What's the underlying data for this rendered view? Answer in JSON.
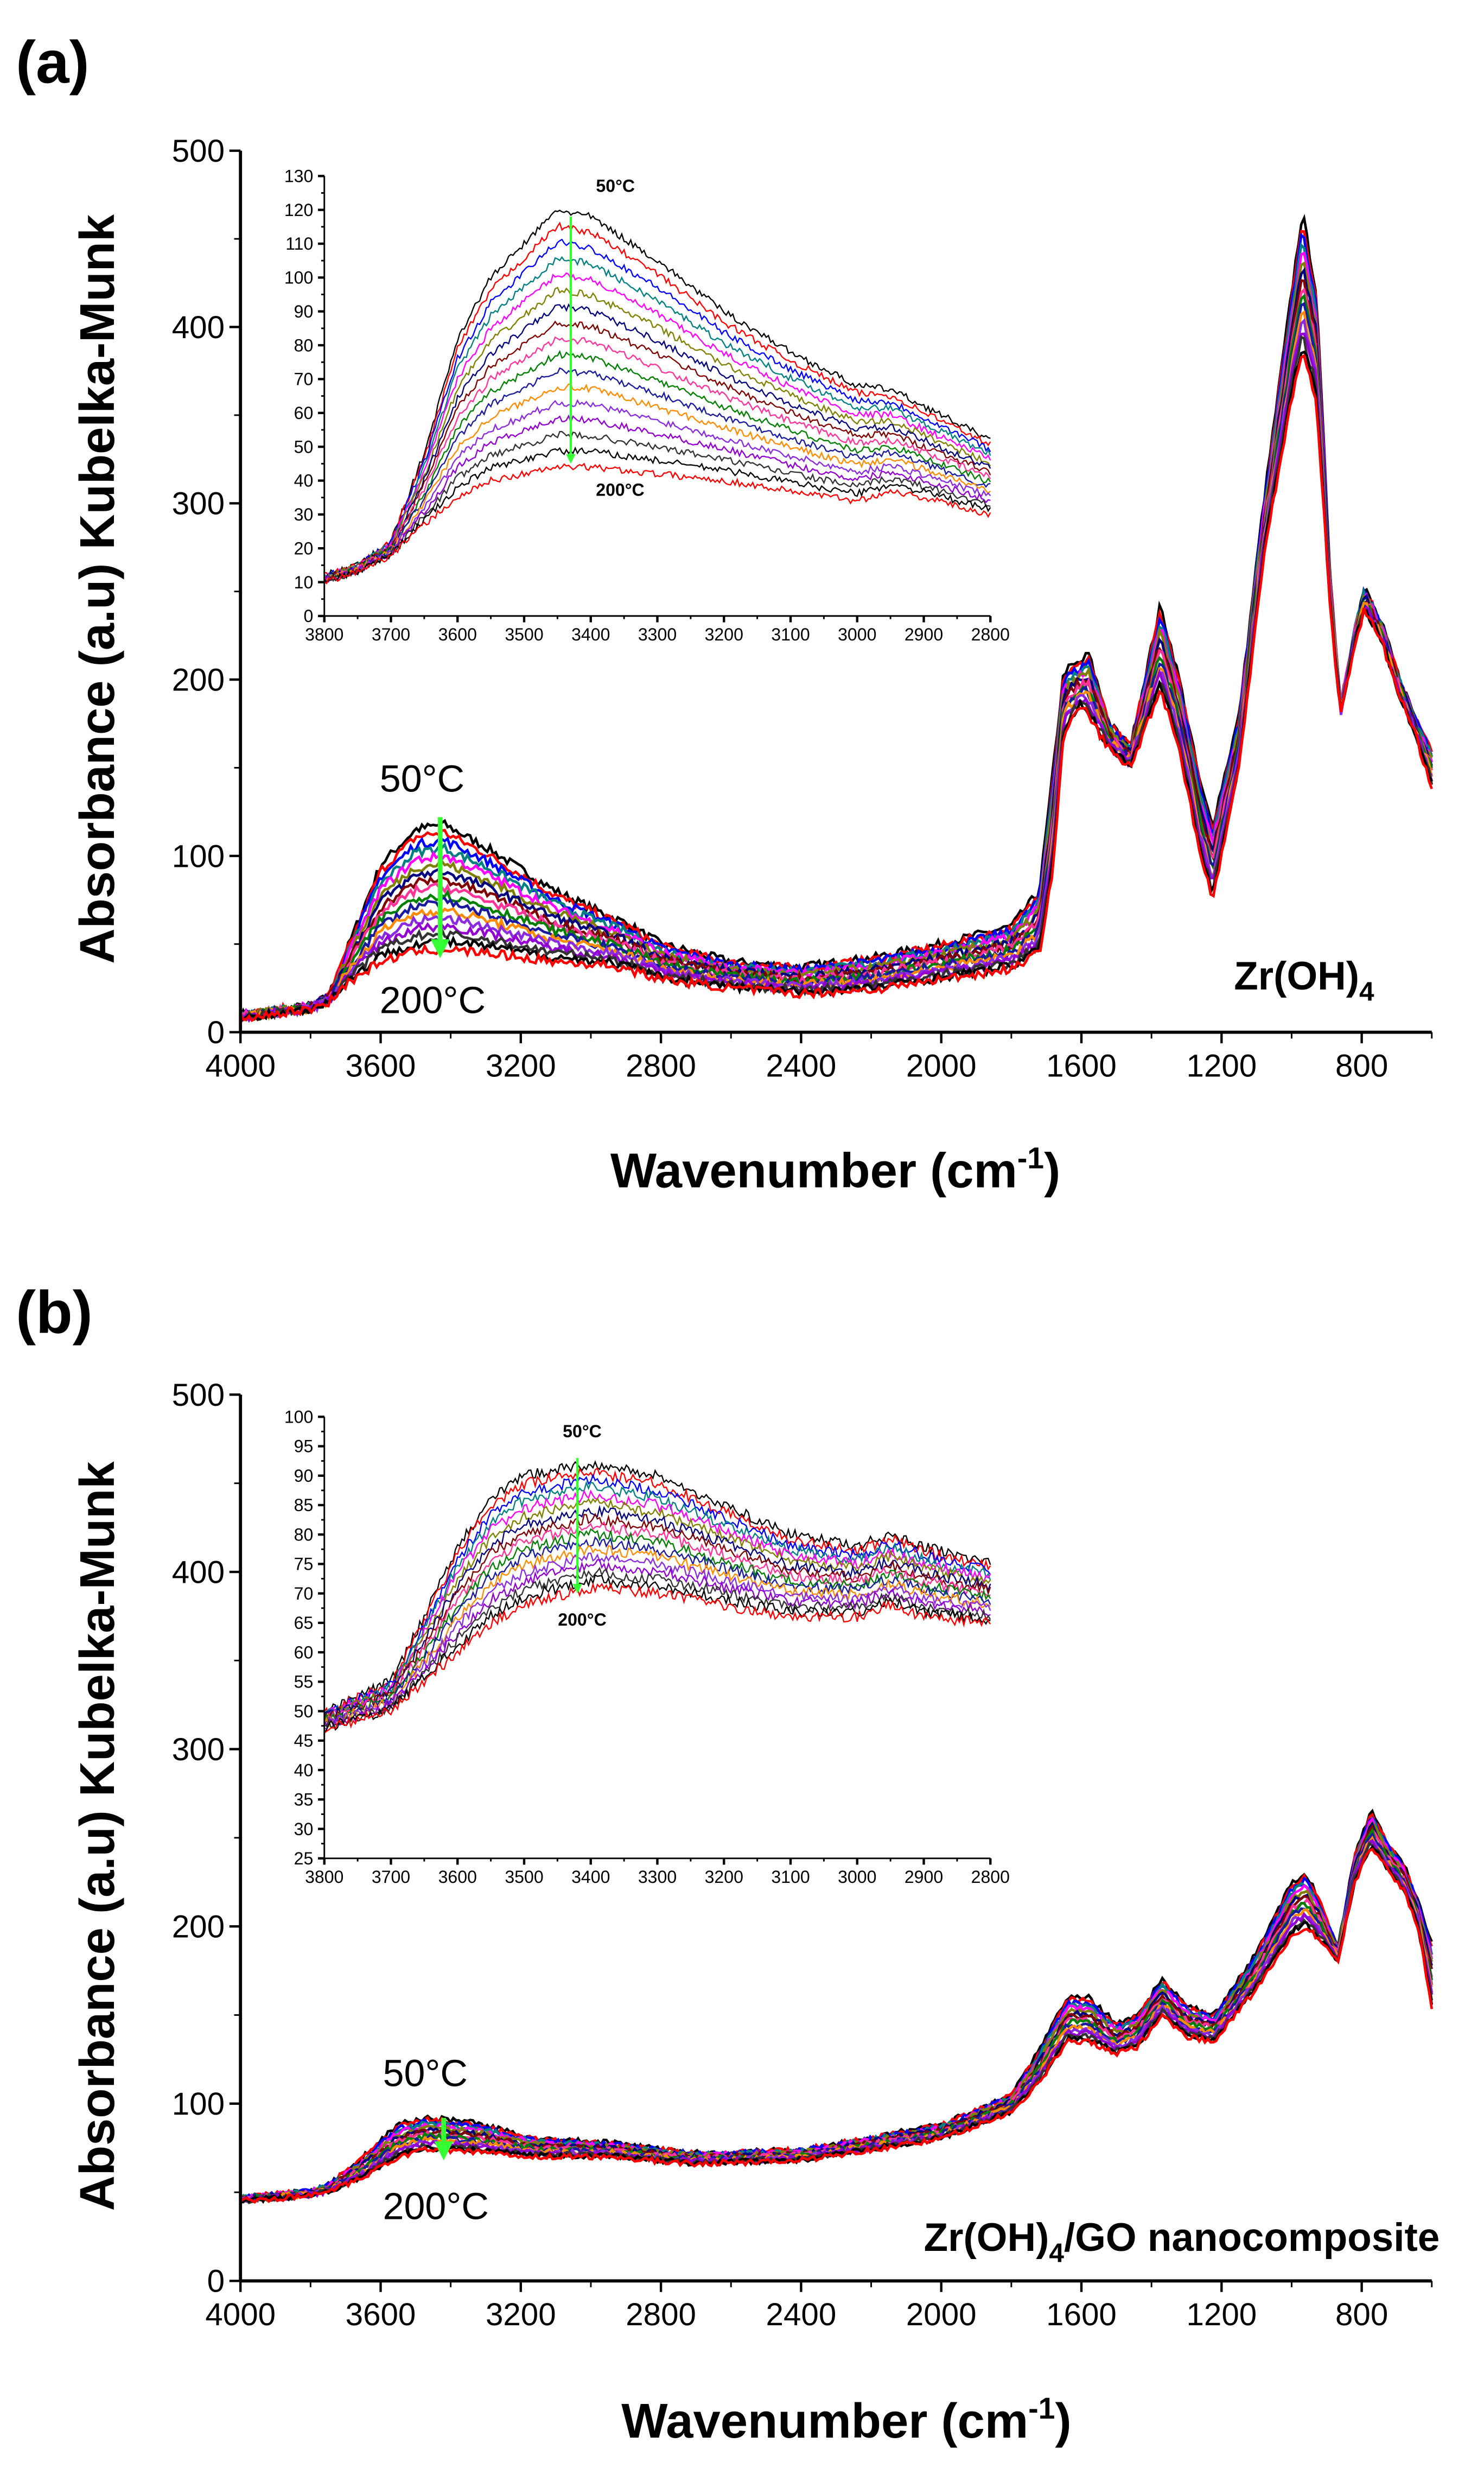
{
  "figure": {
    "panel_a_label": "(a)",
    "panel_b_label": "(b)"
  },
  "chart_data": [
    {
      "type": "line",
      "panel": "a-main",
      "title": "",
      "xlabel": "Wavenumber (cm",
      "xlabel_sup": "-1",
      "xlabel_end": ")",
      "ylabel": "Absorbance (a.u) Kubelka-Munk",
      "xlim": [
        4000,
        600
      ],
      "ylim": [
        0,
        500
      ],
      "xticks": [
        4000,
        3600,
        3200,
        2800,
        2400,
        2000,
        1600,
        1200,
        800
      ],
      "xminor": 200,
      "yticks": [
        0,
        100,
        200,
        300,
        400,
        500
      ],
      "yminor": 50,
      "grid": false,
      "n_series": 17,
      "series_colors": [
        "#000000",
        "#ff0000",
        "#0000ff",
        "#008080",
        "#ff00ff",
        "#808000",
        "#000080",
        "#800000",
        "#ff3399",
        "#008000",
        "#1a1aa0",
        "#ff8c00",
        "#8a2be2",
        "#9400d3",
        "#333333",
        "#000000",
        "#ff0000"
      ],
      "series_50C": [
        [
          4000,
          10
        ],
        [
          3800,
          15
        ],
        [
          3750,
          20
        ],
        [
          3700,
          45
        ],
        [
          3600,
          95
        ],
        [
          3500,
          115
        ],
        [
          3420,
          118
        ],
        [
          3300,
          105
        ],
        [
          3100,
          80
        ],
        [
          2950,
          66
        ],
        [
          2900,
          62
        ],
        [
          2800,
          50
        ],
        [
          2600,
          40
        ],
        [
          2400,
          37
        ],
        [
          2200,
          42
        ],
        [
          2000,
          50
        ],
        [
          1800,
          60
        ],
        [
          1720,
          80
        ],
        [
          1680,
          150
        ],
        [
          1650,
          205
        ],
        [
          1600,
          210
        ],
        [
          1580,
          215
        ],
        [
          1520,
          175
        ],
        [
          1460,
          162
        ],
        [
          1375,
          242
        ],
        [
          1320,
          200
        ],
        [
          1260,
          140
        ],
        [
          1226,
          117
        ],
        [
          1150,
          180
        ],
        [
          1080,
          300
        ],
        [
          1000,
          420
        ],
        [
          969,
          465
        ],
        [
          930,
          420
        ],
        [
          890,
          260
        ],
        [
          860,
          185
        ],
        [
          820,
          230
        ],
        [
          792,
          252
        ],
        [
          740,
          230
        ],
        [
          700,
          205
        ],
        [
          650,
          180
        ],
        [
          600,
          160
        ]
      ],
      "series_200C": [
        [
          4000,
          8
        ],
        [
          3800,
          13
        ],
        [
          3750,
          17
        ],
        [
          3700,
          27
        ],
        [
          3600,
          40
        ],
        [
          3500,
          46
        ],
        [
          3420,
          47
        ],
        [
          3300,
          45
        ],
        [
          3100,
          40
        ],
        [
          2950,
          38
        ],
        [
          2900,
          36
        ],
        [
          2800,
          30
        ],
        [
          2600,
          25
        ],
        [
          2400,
          22
        ],
        [
          2200,
          24
        ],
        [
          2000,
          30
        ],
        [
          1800,
          36
        ],
        [
          1720,
          45
        ],
        [
          1680,
          95
        ],
        [
          1650,
          170
        ],
        [
          1600,
          185
        ],
        [
          1580,
          180
        ],
        [
          1520,
          160
        ],
        [
          1460,
          150
        ],
        [
          1375,
          195
        ],
        [
          1320,
          160
        ],
        [
          1260,
          100
        ],
        [
          1226,
          75
        ],
        [
          1150,
          150
        ],
        [
          1080,
          270
        ],
        [
          1000,
          360
        ],
        [
          969,
          385
        ],
        [
          930,
          360
        ],
        [
          890,
          240
        ],
        [
          860,
          180
        ],
        [
          820,
          220
        ],
        [
          792,
          240
        ],
        [
          740,
          220
        ],
        [
          700,
          195
        ],
        [
          650,
          170
        ],
        [
          600,
          140
        ]
      ],
      "annotations": {
        "top_temp": "50°C",
        "bottom_temp": "200°C",
        "sample": "Zr(OH)",
        "sample_sub": "4",
        "sample_rest": ""
      },
      "arrow": {
        "x": 3430,
        "from": 122,
        "to": 42,
        "color": "#33ff33"
      }
    },
    {
      "type": "line",
      "panel": "a-inset",
      "xlim": [
        3800,
        2800
      ],
      "ylim": [
        0,
        130
      ],
      "xticks": [
        3800,
        3700,
        3600,
        3500,
        3400,
        3300,
        3200,
        3100,
        3000,
        2900,
        2800
      ],
      "xminor": 50,
      "yticks": [
        0,
        10,
        20,
        30,
        40,
        50,
        60,
        70,
        80,
        90,
        100,
        110,
        120,
        130
      ],
      "yminor": 5,
      "n_series": 17,
      "series_colors": [
        "#000000",
        "#ff0000",
        "#0000ff",
        "#008080",
        "#ff00ff",
        "#808000",
        "#000080",
        "#800000",
        "#ff3399",
        "#008000",
        "#1a1aa0",
        "#ff8c00",
        "#8a2be2",
        "#9400d3",
        "#333333",
        "#000000",
        "#ff0000"
      ],
      "series_50C": [
        [
          3800,
          12
        ],
        [
          3750,
          15
        ],
        [
          3700,
          22
        ],
        [
          3650,
          48
        ],
        [
          3600,
          82
        ],
        [
          3550,
          100
        ],
        [
          3500,
          110
        ],
        [
          3450,
          120
        ],
        [
          3400,
          118
        ],
        [
          3300,
          105
        ],
        [
          3200,
          90
        ],
        [
          3100,
          78
        ],
        [
          3000,
          68
        ],
        [
          2950,
          67
        ],
        [
          2900,
          62
        ],
        [
          2800,
          52
        ]
      ],
      "series_200C": [
        [
          3800,
          10
        ],
        [
          3750,
          13
        ],
        [
          3700,
          18
        ],
        [
          3650,
          27
        ],
        [
          3600,
          35
        ],
        [
          3550,
          40
        ],
        [
          3500,
          42
        ],
        [
          3450,
          44
        ],
        [
          3400,
          44
        ],
        [
          3300,
          42
        ],
        [
          3200,
          40
        ],
        [
          3100,
          37
        ],
        [
          3000,
          34
        ],
        [
          2950,
          37
        ],
        [
          2900,
          35
        ],
        [
          2800,
          30
        ]
      ],
      "annotations": {
        "top_temp": "50°C",
        "bottom_temp": "200°C"
      },
      "arrow": {
        "x": 3430,
        "from": 118,
        "to": 45,
        "color": "#33ff33"
      }
    },
    {
      "type": "line",
      "panel": "b-main",
      "xlabel": "Wavenumber (cm",
      "xlabel_sup": "-1",
      "xlabel_end": ")",
      "ylabel": "Absorbance (a.u) Kubelka-Munk",
      "xlim": [
        4000,
        600
      ],
      "ylim": [
        0,
        500
      ],
      "xticks": [
        4000,
        3600,
        3200,
        2800,
        2400,
        2000,
        1600,
        1200,
        800
      ],
      "xminor": 200,
      "yticks": [
        0,
        100,
        200,
        300,
        400,
        500
      ],
      "yminor": 50,
      "grid": false,
      "n_series": 17,
      "series_colors": [
        "#000000",
        "#ff0000",
        "#0000ff",
        "#008080",
        "#ff00ff",
        "#808000",
        "#000080",
        "#800000",
        "#ff3399",
        "#008000",
        "#1a1aa0",
        "#ff8c00",
        "#8a2be2",
        "#9400d3",
        "#333333",
        "#000000",
        "#ff0000"
      ],
      "series_50C": [
        [
          4000,
          47
        ],
        [
          3800,
          51
        ],
        [
          3750,
          54
        ],
        [
          3650,
          70
        ],
        [
          3550,
          88
        ],
        [
          3470,
          92
        ],
        [
          3350,
          90
        ],
        [
          3150,
          80
        ],
        [
          2950,
          78
        ],
        [
          2700,
          72
        ],
        [
          2400,
          74
        ],
        [
          2000,
          88
        ],
        [
          1800,
          105
        ],
        [
          1720,
          130
        ],
        [
          1640,
          160
        ],
        [
          1580,
          160
        ],
        [
          1500,
          145
        ],
        [
          1440,
          150
        ],
        [
          1370,
          170
        ],
        [
          1300,
          155
        ],
        [
          1220,
          150
        ],
        [
          1100,
          185
        ],
        [
          1000,
          225
        ],
        [
          960,
          230
        ],
        [
          920,
          215
        ],
        [
          868,
          188
        ],
        [
          820,
          240
        ],
        [
          773,
          265
        ],
        [
          720,
          245
        ],
        [
          680,
          235
        ],
        [
          640,
          215
        ],
        [
          600,
          190
        ]
      ],
      "series_200C": [
        [
          4000,
          45
        ],
        [
          3800,
          48
        ],
        [
          3750,
          50
        ],
        [
          3650,
          58
        ],
        [
          3550,
          70
        ],
        [
          3470,
          74
        ],
        [
          3350,
          73
        ],
        [
          3150,
          70
        ],
        [
          2950,
          70
        ],
        [
          2700,
          66
        ],
        [
          2400,
          68
        ],
        [
          2000,
          80
        ],
        [
          1800,
          95
        ],
        [
          1720,
          112
        ],
        [
          1640,
          135
        ],
        [
          1580,
          135
        ],
        [
          1500,
          128
        ],
        [
          1440,
          132
        ],
        [
          1370,
          150
        ],
        [
          1300,
          138
        ],
        [
          1220,
          135
        ],
        [
          1100,
          165
        ],
        [
          1000,
          195
        ],
        [
          960,
          200
        ],
        [
          920,
          192
        ],
        [
          868,
          180
        ],
        [
          820,
          225
        ],
        [
          773,
          245
        ],
        [
          720,
          230
        ],
        [
          680,
          220
        ],
        [
          640,
          200
        ],
        [
          600,
          155
        ]
      ],
      "annotations": {
        "top_temp": "50°C",
        "bottom_temp": "200°C",
        "sample": "Zr(OH)",
        "sample_sub": "4",
        "sample_rest": "/GO nanocomposite"
      },
      "arrow": {
        "x": 3420,
        "from": 92,
        "to": 68,
        "color": "#33ff33"
      }
    },
    {
      "type": "line",
      "panel": "b-inset",
      "xlim": [
        3800,
        2800
      ],
      "ylim": [
        25,
        100
      ],
      "xticks": [
        3800,
        3700,
        3600,
        3500,
        3400,
        3300,
        3200,
        3100,
        3000,
        2900,
        2800
      ],
      "xminor": 50,
      "yticks": [
        25,
        30,
        35,
        40,
        45,
        50,
        55,
        60,
        65,
        70,
        75,
        80,
        85,
        90,
        95,
        100
      ],
      "yminor": 2.5,
      "n_series": 17,
      "series_colors": [
        "#000000",
        "#ff0000",
        "#0000ff",
        "#008080",
        "#ff00ff",
        "#808000",
        "#000080",
        "#800000",
        "#ff3399",
        "#008000",
        "#1a1aa0",
        "#ff8c00",
        "#8a2be2",
        "#9400d3",
        "#333333",
        "#000000",
        "#ff0000"
      ],
      "series_50C": [
        [
          3800,
          50
        ],
        [
          3700,
          55
        ],
        [
          3650,
          66
        ],
        [
          3600,
          78
        ],
        [
          3550,
          86
        ],
        [
          3500,
          90
        ],
        [
          3400,
          92
        ],
        [
          3300,
          90
        ],
        [
          3200,
          85
        ],
        [
          3100,
          80
        ],
        [
          3000,
          78
        ],
        [
          2950,
          80
        ],
        [
          2900,
          78
        ],
        [
          2800,
          75
        ]
      ],
      "series_200C": [
        [
          3800,
          47
        ],
        [
          3700,
          50
        ],
        [
          3650,
          55
        ],
        [
          3600,
          60
        ],
        [
          3550,
          65
        ],
        [
          3500,
          68
        ],
        [
          3400,
          71
        ],
        [
          3300,
          70
        ],
        [
          3200,
          68
        ],
        [
          3100,
          66
        ],
        [
          3000,
          66
        ],
        [
          2950,
          68
        ],
        [
          2900,
          66
        ],
        [
          2800,
          65
        ]
      ],
      "annotations": {
        "top_temp": "50°C",
        "bottom_temp": "200°C"
      },
      "arrow": {
        "x": 3420,
        "from": 93,
        "to": 70,
        "color": "#33ff33"
      }
    }
  ]
}
